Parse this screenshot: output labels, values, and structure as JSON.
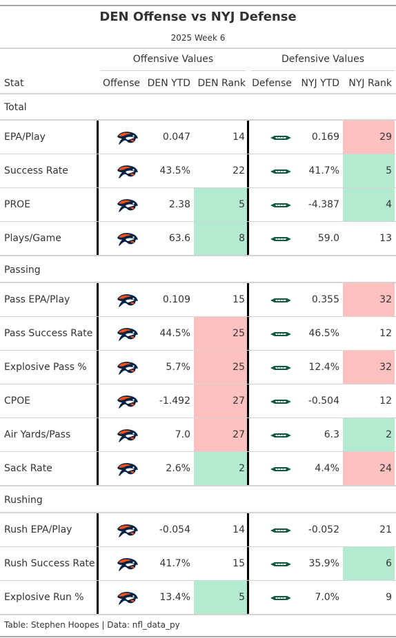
{
  "title": "DEN Offense vs NYJ Defense",
  "subtitle": "2025 Week 6",
  "spanners": {
    "offense": "Offensive Values",
    "defense": "Defensive Values"
  },
  "columns": [
    "Stat",
    "Offense",
    "DEN YTD",
    "DEN Rank",
    "Defense",
    "NYJ YTD",
    "NYJ Rank"
  ],
  "colors": {
    "good": "#b2ebcf",
    "bad": "#ffc0c0",
    "broncos_orange": "#fb4f14",
    "broncos_navy": "#002244",
    "jets_green": "#125740"
  },
  "icons": {
    "offense": "broncos-logo-icon",
    "defense": "jets-logo-icon"
  },
  "chart_data": {
    "type": "table",
    "groups": [
      {
        "name": "Total",
        "rows": [
          {
            "stat": "EPA/Play",
            "den_ytd": "0.047",
            "den_rank": 14,
            "nyj_ytd": "0.169",
            "nyj_rank": 29
          },
          {
            "stat": "Success Rate",
            "den_ytd": "43.5%",
            "den_rank": 22,
            "nyj_ytd": "41.7%",
            "nyj_rank": 5
          },
          {
            "stat": "PROE",
            "den_ytd": "2.38",
            "den_rank": 5,
            "nyj_ytd": "-4.387",
            "nyj_rank": 4
          },
          {
            "stat": "Plays/Game",
            "den_ytd": "63.6",
            "den_rank": 8,
            "nyj_ytd": "59.0",
            "nyj_rank": 13
          }
        ]
      },
      {
        "name": "Passing",
        "rows": [
          {
            "stat": "Pass EPA/Play",
            "den_ytd": "0.109",
            "den_rank": 15,
            "nyj_ytd": "0.355",
            "nyj_rank": 32
          },
          {
            "stat": "Pass Success Rate",
            "den_ytd": "44.5%",
            "den_rank": 25,
            "nyj_ytd": "46.5%",
            "nyj_rank": 12
          },
          {
            "stat": "Explosive Pass %",
            "den_ytd": "5.7%",
            "den_rank": 25,
            "nyj_ytd": "12.4%",
            "nyj_rank": 32
          },
          {
            "stat": "CPOE",
            "den_ytd": "-1.492",
            "den_rank": 27,
            "nyj_ytd": "-0.504",
            "nyj_rank": 12
          },
          {
            "stat": "Air Yards/Pass",
            "den_ytd": "7.0",
            "den_rank": 27,
            "nyj_ytd": "6.3",
            "nyj_rank": 2
          },
          {
            "stat": "Sack Rate",
            "den_ytd": "2.6%",
            "den_rank": 2,
            "nyj_ytd": "4.4%",
            "nyj_rank": 24
          }
        ]
      },
      {
        "name": "Rushing",
        "rows": [
          {
            "stat": "Rush EPA/Play",
            "den_ytd": "-0.054",
            "den_rank": 14,
            "nyj_ytd": "-0.052",
            "nyj_rank": 21
          },
          {
            "stat": "Rush Success Rate",
            "den_ytd": "41.7%",
            "den_rank": 15,
            "nyj_ytd": "35.9%",
            "nyj_rank": 6
          },
          {
            "stat": "Explosive Run %",
            "den_ytd": "13.4%",
            "den_rank": 5,
            "nyj_ytd": "7.0%",
            "nyj_rank": 9
          }
        ]
      }
    ]
  },
  "footer": "Table: Stephen Hoopes | Data: nfl_data_py"
}
